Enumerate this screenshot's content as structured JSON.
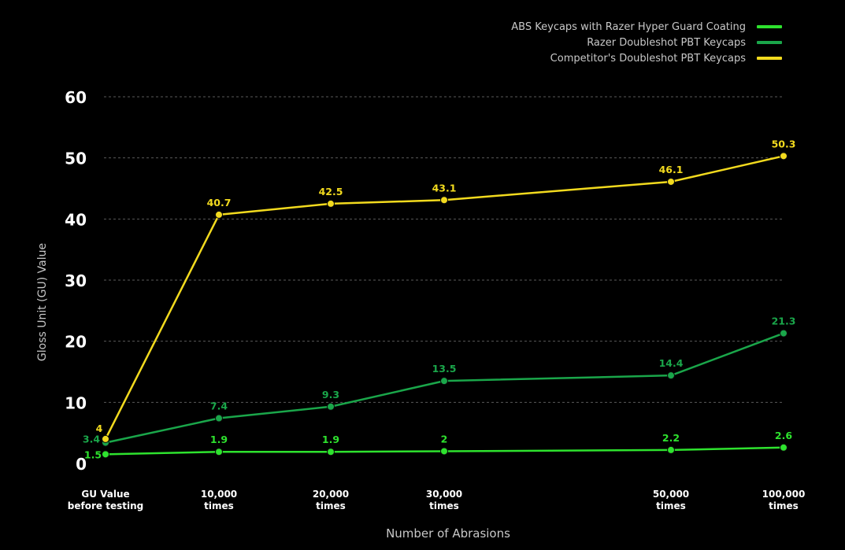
{
  "chart_data": {
    "type": "line",
    "title": "",
    "xlabel": "Number of Abrasions",
    "ylabel": "Gloss Unit (GU) Value",
    "ylim": [
      0,
      60
    ],
    "yticks": [
      0,
      10,
      20,
      30,
      40,
      50,
      60
    ],
    "grid": true,
    "legend_position": "top-right",
    "categories": [
      [
        "GU Value",
        "before testing"
      ],
      [
        "10,000",
        "times"
      ],
      [
        "20,000",
        "times"
      ],
      [
        "30,000",
        "times"
      ],
      [
        "50,000",
        "times"
      ],
      [
        "100,000",
        "times"
      ]
    ],
    "series": [
      {
        "name": "ABS Keycaps with Razer Hyper Guard Coating",
        "color": "#2ee22e",
        "values": [
          1.5,
          1.9,
          1.9,
          2,
          2.2,
          2.6
        ],
        "labels": [
          "1.5",
          "1.9",
          "1.9",
          "2",
          "2.2",
          "2.6"
        ]
      },
      {
        "name": "Razer Doubleshot PBT Keycaps",
        "color": "#1aa64a",
        "values": [
          3.4,
          7.4,
          9.3,
          13.5,
          14.4,
          21.3
        ],
        "labels": [
          "3.4",
          "7.4",
          "9.3",
          "13.5",
          "14.4",
          "21.3"
        ]
      },
      {
        "name": "Competitor's Doubleshot PBT Keycaps",
        "color": "#f2da1e",
        "values": [
          4,
          40.7,
          42.5,
          43.1,
          46.1,
          50.3
        ],
        "labels": [
          "4",
          "40.7",
          "42.5",
          "43.1",
          "46.1",
          "50.3"
        ]
      }
    ]
  }
}
